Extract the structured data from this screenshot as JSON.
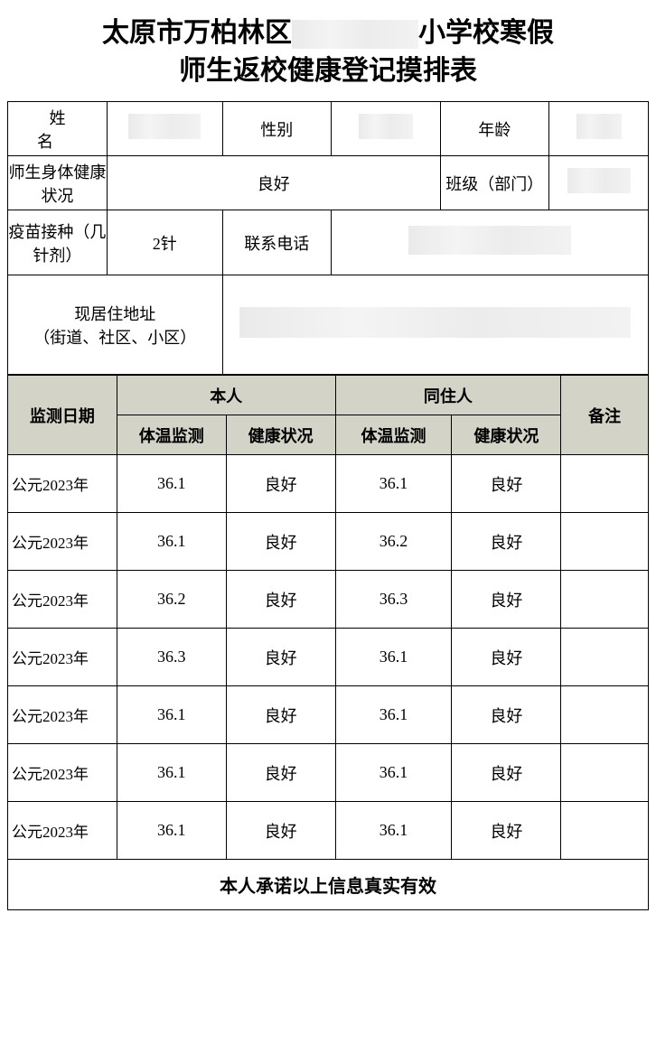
{
  "title_line1": "太原市万柏林区",
  "title_redacted_mid": true,
  "title_line1b": "小学校寒假",
  "title_line2": "师生返校健康登记摸排表",
  "info": {
    "name_label": "姓名",
    "gender_label": "性别",
    "age_label": "年龄",
    "health_label": "师生身体健康状况",
    "health_value": "良好",
    "class_label": "班级（部门）",
    "vaccine_label": "疫苗接种（几针剂）",
    "vaccine_value": "2针",
    "phone_label": "联系电话",
    "address_label": "现居住地址\n（街道、社区、小区）"
  },
  "monitor_header": {
    "date": "监测日期",
    "self": "本人",
    "cohab": "同住人",
    "remark": "备注",
    "temp": "体温监测",
    "status": "健康状况"
  },
  "rows": [
    {
      "date": "公元2023年",
      "t1": "36.1",
      "s1": "良好",
      "t2": "36.1",
      "s2": "良好",
      "r": ""
    },
    {
      "date": "公元2023年",
      "t1": "36.1",
      "s1": "良好",
      "t2": "36.2",
      "s2": "良好",
      "r": ""
    },
    {
      "date": "公元2023年",
      "t1": "36.2",
      "s1": "良好",
      "t2": "36.3",
      "s2": "良好",
      "r": ""
    },
    {
      "date": "公元2023年",
      "t1": "36.3",
      "s1": "良好",
      "t2": "36.1",
      "s2": "良好",
      "r": ""
    },
    {
      "date": "公元2023年",
      "t1": "36.1",
      "s1": "良好",
      "t2": "36.1",
      "s2": "良好",
      "r": ""
    },
    {
      "date": "公元2023年",
      "t1": "36.1",
      "s1": "良好",
      "t2": "36.1",
      "s2": "良好",
      "r": ""
    },
    {
      "date": "公元2023年",
      "t1": "36.1",
      "s1": "良好",
      "t2": "36.1",
      "s2": "良好",
      "r": ""
    }
  ],
  "promise": "本人承诺以上信息真实有效",
  "colors": {
    "header_bg": "#d3d3c7",
    "border": "#000000",
    "background": "#ffffff",
    "redact": "#eeeeee"
  },
  "col_widths": {
    "date": "15%",
    "temp": "15%",
    "status": "15%",
    "remark": "10%"
  }
}
